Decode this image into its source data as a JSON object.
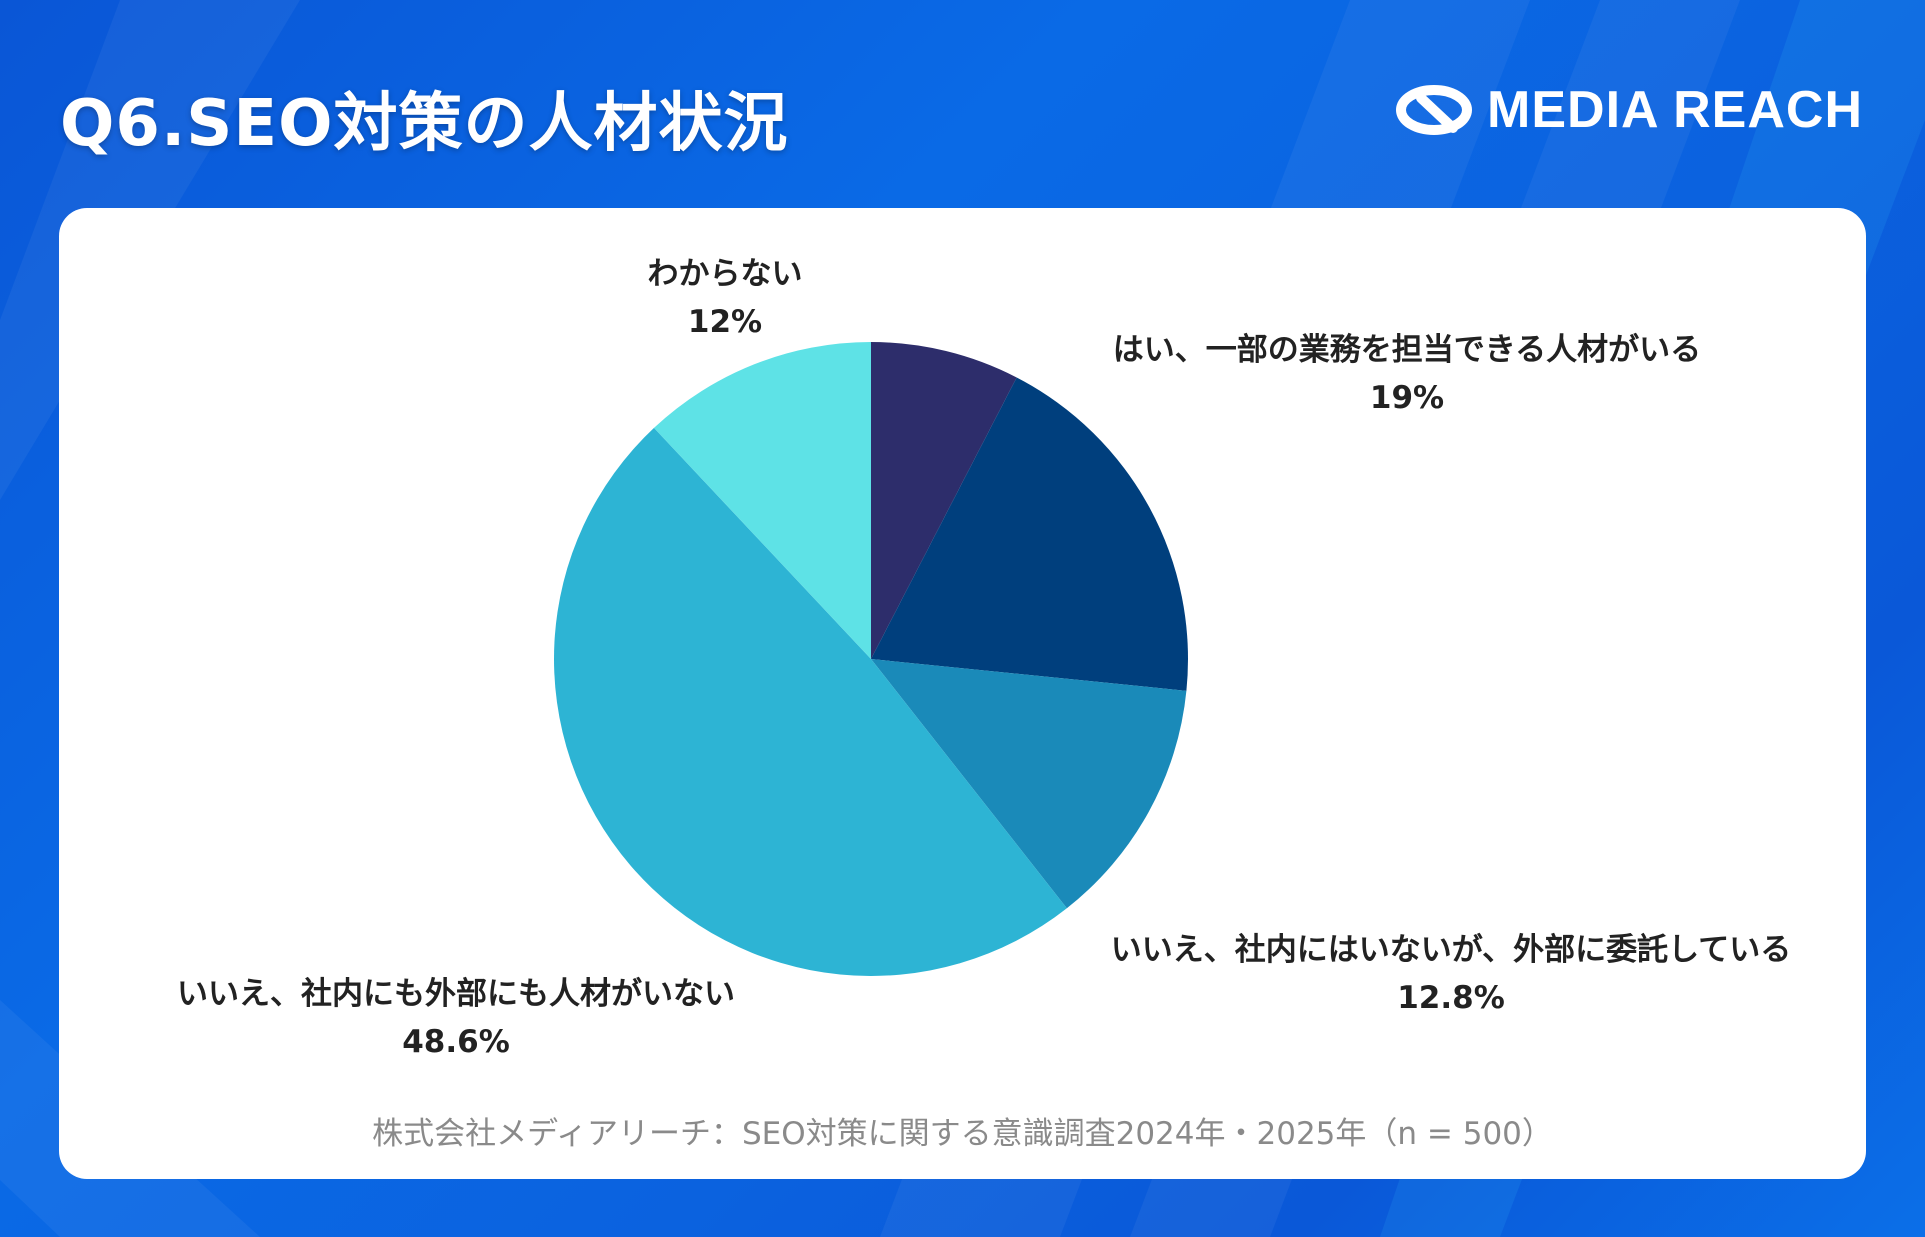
{
  "header": {
    "title": "Q6.SEO対策の人材状況",
    "logo_text": "MEDIA REACH",
    "logo_icon": "media-reach-logo-icon"
  },
  "colors": {
    "background": "#0a62df",
    "card": "#ffffff"
  },
  "chart_data": {
    "type": "pie",
    "title": "",
    "start_angle_deg": 0,
    "direction": "clockwise",
    "slices": [
      {
        "label": "",
        "value": 7.6,
        "value_label": "",
        "color": "#2d2d6b"
      },
      {
        "label": "はい、一部の業務を担当できる人材がいる",
        "value": 19,
        "value_label": "19%",
        "color": "#003f7d"
      },
      {
        "label": "いいえ、社内にはいないが、外部に委託している",
        "value": 12.8,
        "value_label": "12.8%",
        "color": "#1a8ab9"
      },
      {
        "label": "いいえ、社内にも外部にも人材がいない",
        "value": 48.6,
        "value_label": "48.6%",
        "color": "#2db4d4"
      },
      {
        "label": "わからない",
        "value": 12,
        "value_label": "12%",
        "color": "#5ee2e6"
      }
    ]
  },
  "footer": {
    "source": "株式会社メディアリーチ：SEO対策に関する意識調査2024年・2025年（n = 500）"
  }
}
